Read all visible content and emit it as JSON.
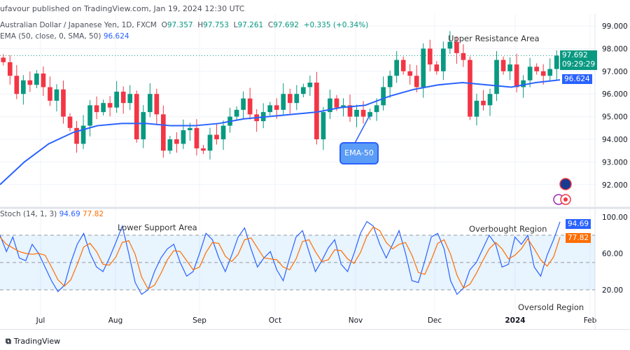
{
  "header": {
    "published": "ufavour published on TradingView.com, Jan 19, 2024 12:30 UTC"
  },
  "legend": {
    "symbol": "Australian Dollar / Japanese Yen, 1D, FXCM",
    "o_label": "O",
    "o": "97.357",
    "h_label": "H",
    "h": "97.753",
    "l_label": "L",
    "l": "97.261",
    "c_label": "C",
    "c": "97.692",
    "change": "+0.335 (+0.34%)",
    "ema_label": "EMA (50, close, 0, SMA, 50)",
    "ema_value": "96.624",
    "stoch_label": "Stoch (14, 1, 3)",
    "stoch_k": "94.69",
    "stoch_d": "77.82"
  },
  "badges": {
    "price": "97.692",
    "countdown": "09:29:29",
    "ema": "96.624",
    "stoch_k": "94.69",
    "stoch_d": "77.82"
  },
  "annotations": {
    "upper": "Upper Resistance Area",
    "lower": "Lower Support Area",
    "ema50": "EMA-50",
    "overbought": "Overbought Region",
    "oversold": "Oversold Region"
  },
  "footer": {
    "brand": "TradingView"
  },
  "colors": {
    "up": "#089981",
    "down": "#f23645",
    "ema": "#2962ff",
    "stoch_k": "#2962ff",
    "stoch_d": "#ff6d00"
  },
  "chart_data": [
    {
      "type": "candlestick",
      "price_axis": [
        "99.000",
        "98.000",
        "97.000",
        "96.000",
        "95.000",
        "94.000",
        "93.000",
        "92.000"
      ],
      "ylim": [
        91.5,
        99.5
      ],
      "time_axis": [
        "Jul",
        "Aug",
        "Sep",
        "Oct",
        "Nov",
        "Dec",
        "2024",
        "Feb"
      ],
      "closes": [
        97.4,
        96.8,
        96.0,
        96.6,
        96.4,
        96.9,
        96.3,
        95.7,
        96.2,
        95.0,
        94.5,
        93.8,
        94.6,
        95.5,
        95.2,
        95.6,
        95.4,
        96.1,
        95.6,
        96.0,
        94.0,
        95.2,
        96.0,
        95.1,
        93.5,
        94.0,
        93.8,
        94.4,
        94.5,
        93.6,
        93.5,
        94.2,
        94.0,
        94.6,
        95.0,
        95.3,
        95.8,
        95.1,
        94.8,
        95.2,
        95.5,
        95.3,
        96.0,
        95.6,
        96.0,
        96.3,
        96.5,
        94.0,
        95.2,
        95.8,
        95.4,
        95.5,
        95.0,
        95.3,
        95.0,
        95.2,
        95.5,
        96.3,
        96.8,
        97.5,
        97.0,
        96.8,
        96.3,
        98.0,
        97.3,
        97.0,
        98.0,
        98.3,
        97.8,
        97.5,
        95.0,
        95.7,
        95.5,
        96.0,
        97.5,
        97.0,
        97.3,
        96.3,
        96.6,
        97.2,
        97.0,
        96.8,
        97.1,
        97.69
      ],
      "ema50": [
        92.0,
        93.0,
        93.8,
        94.3,
        94.6,
        94.7,
        94.7,
        94.6,
        94.6,
        94.7,
        94.9,
        95.0,
        95.1,
        95.2,
        95.4,
        95.5,
        95.9,
        96.2,
        96.4,
        96.5,
        96.4,
        96.3,
        96.5,
        96.62
      ]
    },
    {
      "type": "line",
      "indicator": "Stochastic",
      "yaxis": [
        "100.00",
        "60.00",
        "20.00"
      ],
      "bands": [
        20,
        50,
        80
      ],
      "series": [
        {
          "name": "%K",
          "values": [
            80,
            62,
            78,
            55,
            52,
            70,
            60,
            45,
            30,
            18,
            25,
            50,
            70,
            82,
            60,
            45,
            40,
            55,
            72,
            90,
            60,
            28,
            15,
            20,
            40,
            55,
            65,
            70,
            50,
            35,
            40,
            60,
            82,
            75,
            55,
            40,
            58,
            78,
            88,
            65,
            45,
            55,
            62,
            42,
            30,
            55,
            78,
            85,
            62,
            40,
            52,
            66,
            75,
            48,
            40,
            60,
            82,
            95,
            90,
            70,
            55,
            70,
            85,
            60,
            30,
            28,
            52,
            78,
            82,
            65,
            30,
            15,
            22,
            42,
            50,
            65,
            80,
            70,
            45,
            48,
            78,
            70,
            80,
            45,
            35,
            58,
            75,
            94.69
          ]
        },
        {
          "name": "%D",
          "values": [
            78,
            70,
            66,
            62,
            60,
            59,
            60,
            58,
            45,
            31,
            24,
            31,
            48,
            67,
            71,
            62,
            48,
            47,
            56,
            72,
            74,
            59,
            34,
            21,
            25,
            38,
            53,
            63,
            62,
            52,
            42,
            45,
            61,
            72,
            71,
            57,
            51,
            59,
            75,
            77,
            66,
            55,
            54,
            53,
            45,
            42,
            54,
            73,
            75,
            62,
            51,
            53,
            64,
            63,
            54,
            49,
            61,
            79,
            89,
            85,
            72,
            65,
            70,
            72,
            58,
            39,
            37,
            53,
            71,
            75,
            59,
            36,
            22,
            26,
            38,
            52,
            65,
            72,
            65,
            54,
            58,
            65,
            76,
            65,
            53,
            46,
            56,
            77.82
          ]
        }
      ]
    }
  ]
}
